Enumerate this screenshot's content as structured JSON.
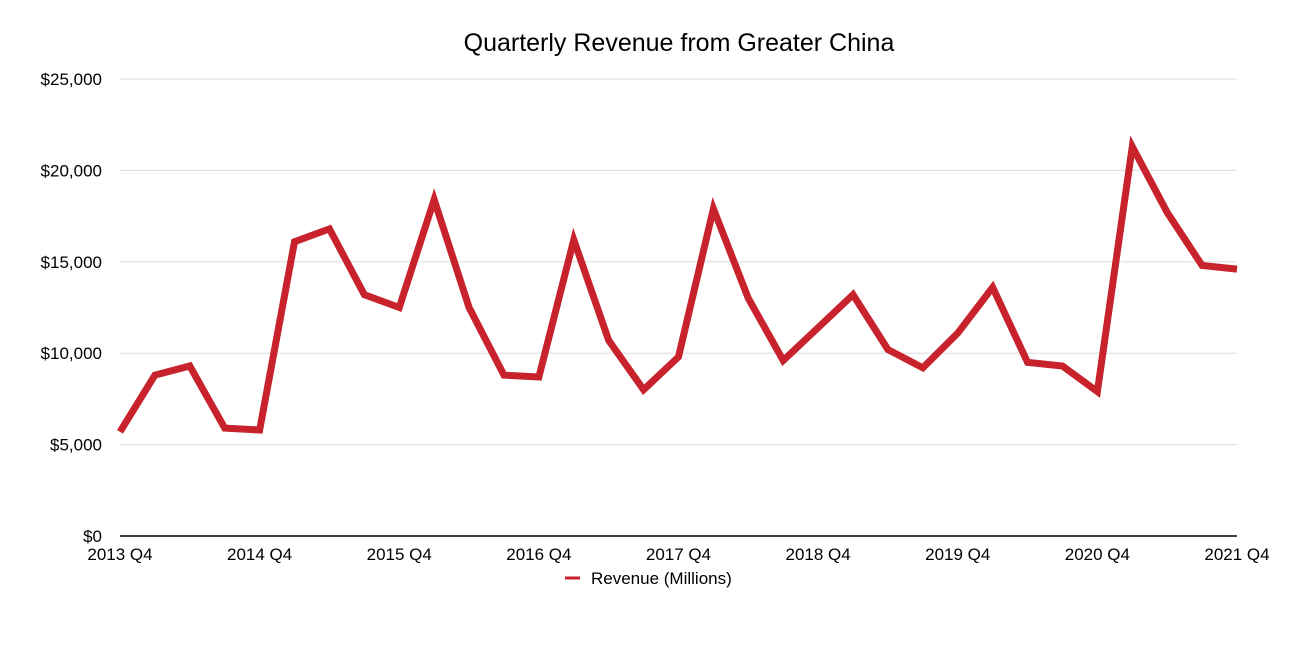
{
  "chart_data": {
    "type": "line",
    "title": "Quarterly Revenue from Greater China",
    "xlabel": "",
    "ylabel": "",
    "x_tick_labels": [
      "2013 Q4",
      "2014 Q4",
      "2015 Q4",
      "2016 Q4",
      "2017 Q4",
      "2018 Q4",
      "2019 Q4",
      "2020 Q4",
      "2021 Q4"
    ],
    "y_tick_labels": [
      "$0",
      "$5,000",
      "$10,000",
      "$15,000",
      "$20,000",
      "$25,000"
    ],
    "ylim": [
      0,
      25000
    ],
    "grid": true,
    "legend_position": "bottom",
    "line_color": "#c8232c",
    "series": [
      {
        "name": "Revenue (Millions)",
        "x": [
          "2013 Q4",
          "2014 Q1",
          "2014 Q2",
          "2014 Q3",
          "2014 Q4",
          "2015 Q1",
          "2015 Q2",
          "2015 Q3",
          "2015 Q4",
          "2016 Q1",
          "2016 Q2",
          "2016 Q3",
          "2016 Q4",
          "2017 Q1",
          "2017 Q2",
          "2017 Q3",
          "2017 Q4",
          "2018 Q1",
          "2018 Q2",
          "2018 Q3",
          "2018 Q4",
          "2019 Q1",
          "2019 Q2",
          "2019 Q3",
          "2019 Q4",
          "2020 Q1",
          "2020 Q2",
          "2020 Q3",
          "2020 Q4",
          "2021 Q1",
          "2021 Q2",
          "2021 Q3",
          "2021 Q4"
        ],
        "values": [
          5700,
          8800,
          9300,
          5900,
          5800,
          16100,
          16800,
          13200,
          12500,
          18400,
          12500,
          8800,
          8700,
          16200,
          10700,
          8000,
          9800,
          17900,
          13000,
          9600,
          11400,
          13200,
          10200,
          9200,
          11100,
          13600,
          9500,
          9300,
          7900,
          21300,
          17700,
          14800,
          14600
        ]
      }
    ]
  }
}
